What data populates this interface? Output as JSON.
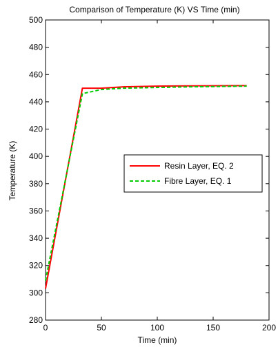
{
  "chart_data": {
    "type": "line",
    "title": "Comparison of Temperature (K) VS Time (min)",
    "xlabel": "Time (min)",
    "ylabel": "Temperature (K)",
    "xlim": [
      0,
      200
    ],
    "ylim": [
      280,
      500
    ],
    "xticks": [
      "0",
      "50",
      "100",
      "150",
      "200"
    ],
    "yticks": [
      "280",
      "300",
      "320",
      "340",
      "360",
      "380",
      "400",
      "420",
      "440",
      "460",
      "480",
      "500"
    ],
    "grid": false,
    "legend_position": "right-middle",
    "series": [
      {
        "name": "Resin Layer, EQ. 2",
        "color": "#ff0000",
        "style": "solid",
        "x": [
          0,
          33,
          50,
          70,
          100,
          130,
          160,
          180
        ],
        "y": [
          303,
          450,
          450,
          451,
          451.5,
          451.7,
          451.8,
          451.9
        ]
      },
      {
        "name": "Fibre Layer, EQ. 1",
        "color": "#00cc00",
        "style": "dashed",
        "x": [
          0,
          33,
          50,
          70,
          100,
          130,
          160,
          180
        ],
        "y": [
          309,
          446,
          449,
          450,
          450.5,
          451,
          451.3,
          451.5
        ]
      }
    ]
  }
}
